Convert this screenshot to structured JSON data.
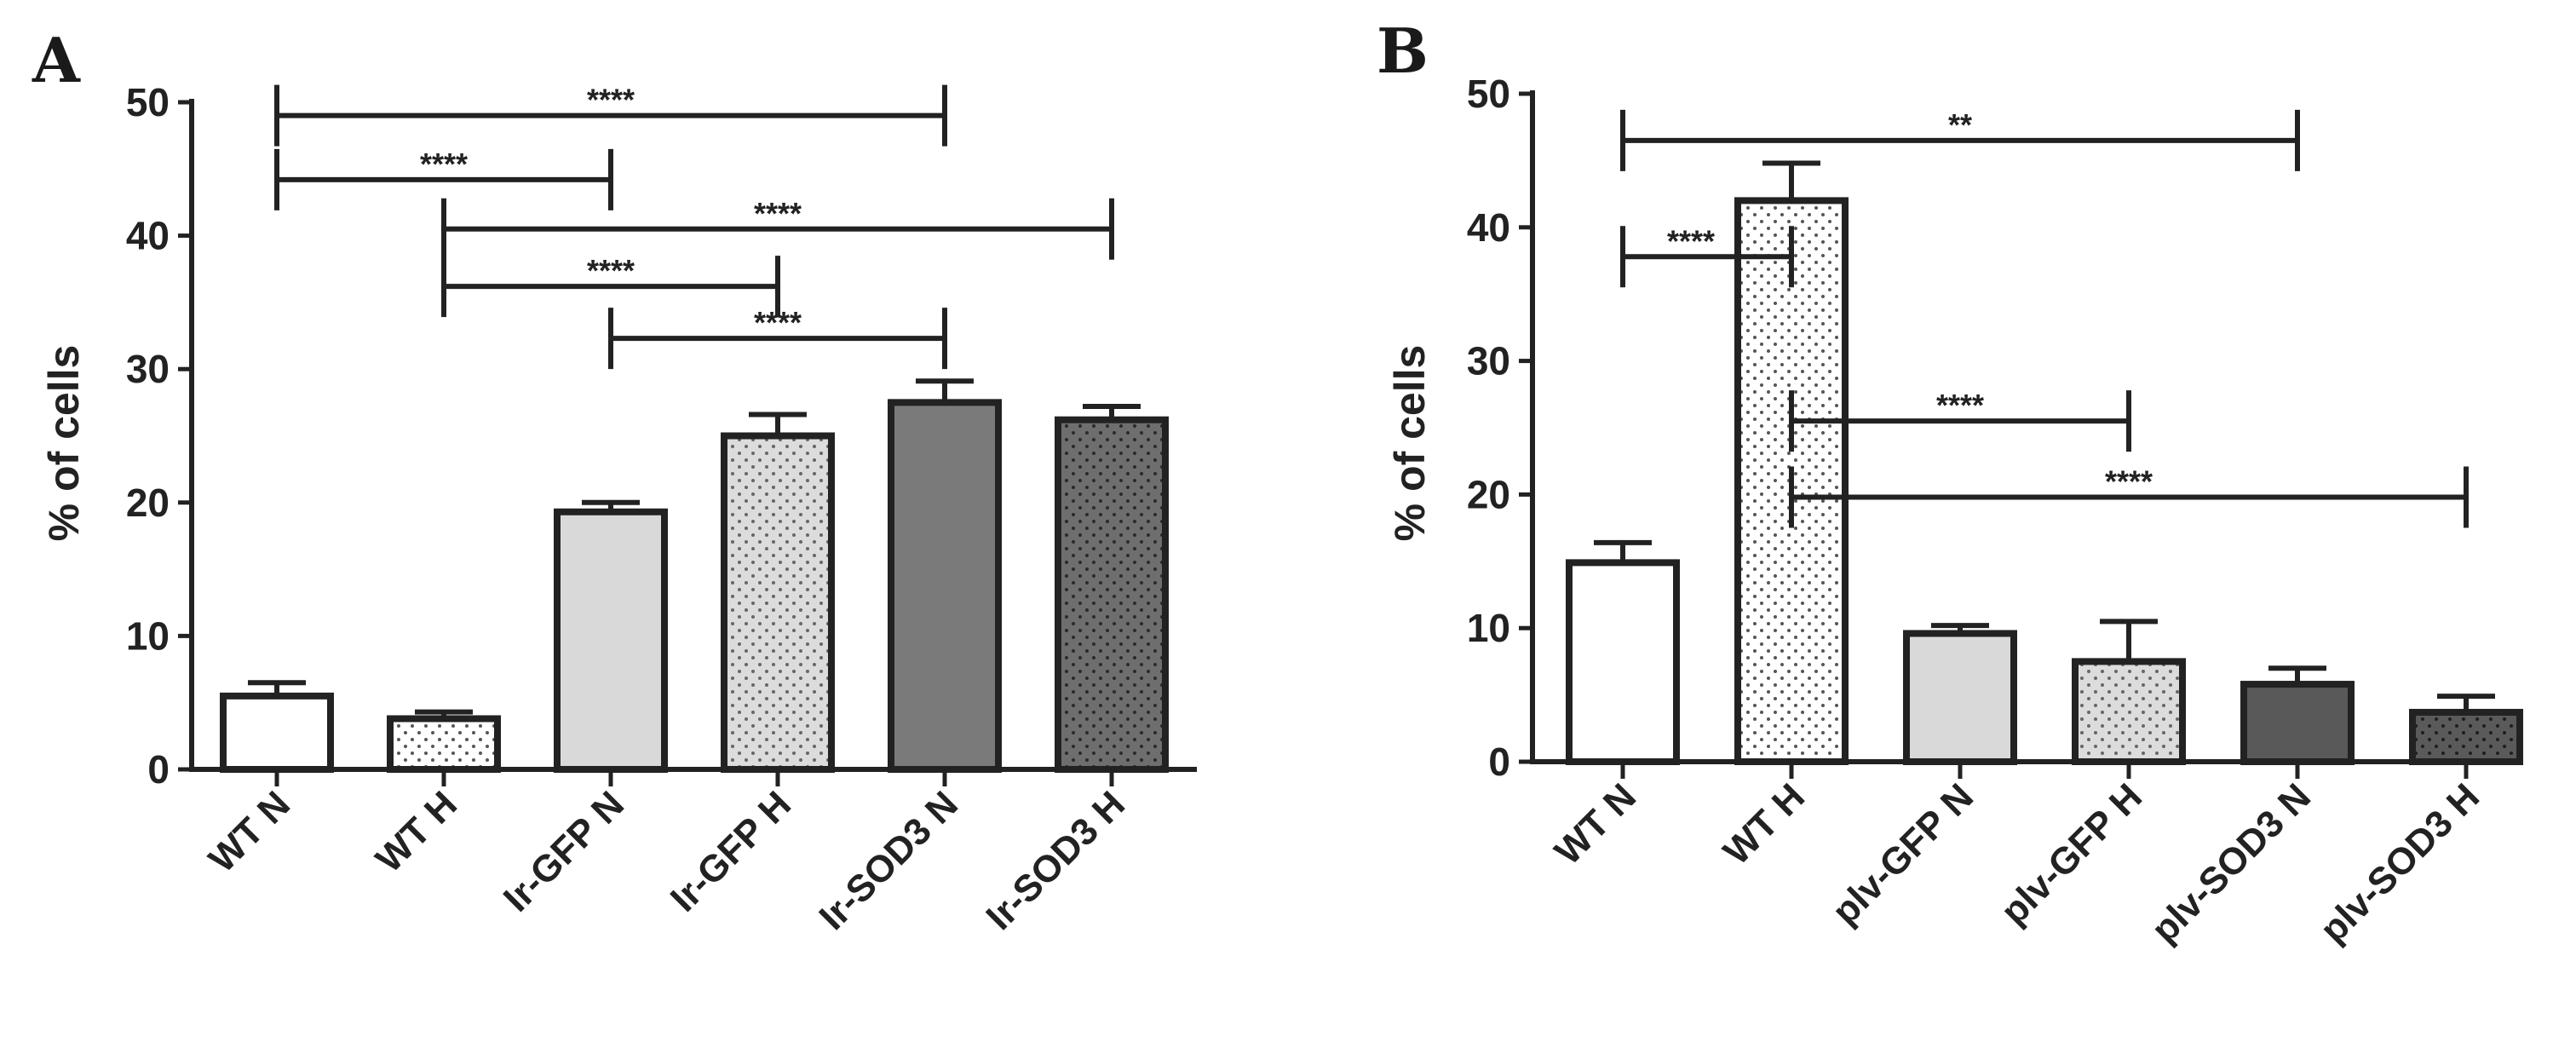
{
  "colors": {
    "ink": "#222222",
    "white": "#ffffff",
    "light_gray": "#d9d9d9",
    "mid_gray": "#7a7a7a",
    "dark_gray": "#595959"
  },
  "chart_data": [
    {
      "panel": "A",
      "type": "bar",
      "ylabel": "% of cells",
      "ylim": [
        0,
        50
      ],
      "yticks": [
        "0",
        "10",
        "20",
        "30",
        "40",
        "50"
      ],
      "categories": [
        "WT N",
        "WT H",
        "Ir-GFP N",
        "Ir-GFP H",
        "Ir-SOD3 N",
        "Ir-SOD3 H"
      ],
      "values": [
        5.5,
        3.8,
        19.3,
        25.0,
        27.5,
        26.2
      ],
      "errors": [
        1.0,
        0.5,
        0.7,
        1.6,
        1.6,
        1.0
      ],
      "fills": [
        "white",
        "white-dots",
        "light",
        "light-dots",
        "mid",
        "mid-dots"
      ],
      "comparisons": [
        {
          "from": 0,
          "to": 4,
          "y": 49,
          "label": "****"
        },
        {
          "from": 0,
          "to": 2,
          "y": 44.2,
          "label": "****"
        },
        {
          "from": 1,
          "to": 5,
          "y": 40.5,
          "label": "****"
        },
        {
          "from": 1,
          "to": 3,
          "y": 36.2,
          "label": "****"
        },
        {
          "from": 2,
          "to": 4,
          "y": 32.3,
          "label": "****"
        }
      ]
    },
    {
      "panel": "B",
      "type": "bar",
      "ylabel": "% of cells",
      "ylim": [
        0,
        50
      ],
      "yticks": [
        "0",
        "10",
        "20",
        "30",
        "40",
        "50"
      ],
      "categories": [
        "WT N",
        "WT H",
        "plv-GFP N",
        "plv-GFP H",
        "plv-SOD3 N",
        "plv-SOD3 H"
      ],
      "values": [
        14.9,
        42.0,
        9.6,
        7.5,
        5.8,
        3.7
      ],
      "errors": [
        1.5,
        2.8,
        0.6,
        3.0,
        1.2,
        1.2
      ],
      "fills": [
        "white",
        "white-dots",
        "light",
        "light-dots",
        "dark",
        "dark-dots"
      ],
      "comparisons": [
        {
          "from": 0,
          "to": 4,
          "y": 46.5,
          "label": "**"
        },
        {
          "from": 0,
          "to": 1,
          "y": 37.8,
          "label": "****"
        },
        {
          "from": 1,
          "to": 3,
          "y": 25.5,
          "label": "****"
        },
        {
          "from": 1,
          "to": 5,
          "y": 19.8,
          "label": "****"
        }
      ]
    }
  ]
}
